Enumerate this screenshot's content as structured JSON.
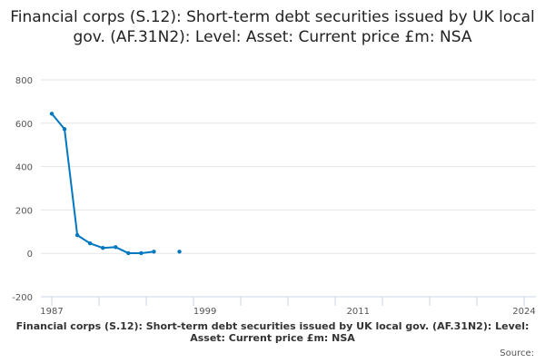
{
  "chart_data": {
    "type": "line",
    "title": "Financial corps (S.12): Short-term debt securities issued by UK local gov. (AF.31N2): Level: Asset: Current price £m: NSA",
    "x": [
      1987,
      1988,
      1989,
      1990,
      1991,
      1992,
      1993,
      1994,
      1995,
      1996,
      1997
    ],
    "series": [
      {
        "name": "Financial corps (S.12): Short-term debt securities issued by UK local gov. (AF.31N2): Level: Asset: Current price £m: NSA",
        "values": [
          644,
          573,
          84,
          46,
          25,
          29,
          1,
          1,
          8,
          null,
          8
        ],
        "color": "#0077c0"
      }
    ],
    "xlim": [
      1987,
      2024
    ],
    "ylim": [
      -200,
      800
    ],
    "yticks": [
      "800",
      "600",
      "400",
      "200",
      "0",
      "-200"
    ],
    "xticks": [
      "1987",
      "1999",
      "2011",
      "2024"
    ],
    "grid": true,
    "legend": "bottom"
  },
  "source_label": "Source:"
}
